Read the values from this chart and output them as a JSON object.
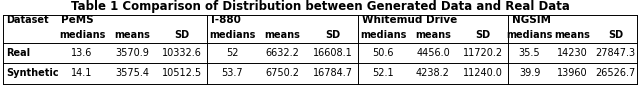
{
  "title": "Table 1 Comparison of Distribution between Generated Data and Real Data",
  "col_groups": [
    "PeMS",
    "I-880",
    "Whitemud Drive",
    "NGSIM"
  ],
  "sub_cols": [
    "medians",
    "means",
    "SD"
  ],
  "row_labels": [
    "Real",
    "Synthetic"
  ],
  "data": {
    "Real": [
      "13.6",
      "3570.9",
      "10332.6",
      "52",
      "6632.2",
      "16608.1",
      "50.6",
      "4456.0",
      "11720.2",
      "35.5",
      "14230",
      "27847.3"
    ],
    "Synthetic": [
      "14.1",
      "3575.4",
      "10512.5",
      "53.7",
      "6750.2",
      "16784.7",
      "52.1",
      "4238.2",
      "11240.0",
      "39.9",
      "13960",
      "26526.7"
    ]
  },
  "background": "#ffffff",
  "title_fontsize": 8.5,
  "cell_fontsize": 7.0,
  "header_fontsize": 7.0,
  "col_group_fontsize": 7.5
}
